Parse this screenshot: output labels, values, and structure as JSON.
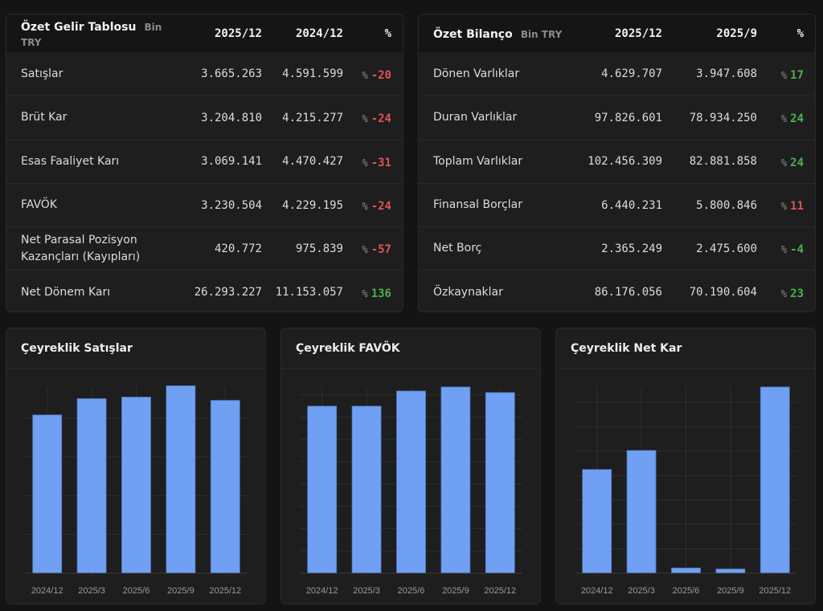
{
  "income_statement": {
    "title": "Özet Gelir Tablosu",
    "unit": "Bin TRY",
    "columns": [
      "2025/12",
      "2024/12",
      "%"
    ],
    "rows": [
      {
        "label": "Satışlar",
        "current": "3.665.263",
        "previous": "4.591.599",
        "pct_symbol": "%",
        "change": "-20",
        "trend": "neg"
      },
      {
        "label": "Brüt Kar",
        "current": "3.204.810",
        "previous": "4.215.277",
        "pct_symbol": "%",
        "change": "-24",
        "trend": "neg"
      },
      {
        "label": "Esas Faaliyet Karı",
        "current": "3.069.141",
        "previous": "4.470.427",
        "pct_symbol": "%",
        "change": "-31",
        "trend": "neg"
      },
      {
        "label": "FAVÖK",
        "current": "3.230.504",
        "previous": "4.229.195",
        "pct_symbol": "%",
        "change": "-24",
        "trend": "neg"
      },
      {
        "label": "Net Parasal Pozisyon Kazançları (Kayıpları)",
        "current": "420.772",
        "previous": "975.839",
        "pct_symbol": "%",
        "change": "-57",
        "trend": "neg"
      },
      {
        "label": "Net Dönem Karı",
        "current": "26.293.227",
        "previous": "11.153.057",
        "pct_symbol": "%",
        "change": "136",
        "trend": "pos"
      }
    ]
  },
  "balance_sheet": {
    "title": "Özet Bilanço",
    "unit": "Bin TRY",
    "columns": [
      "2025/12",
      "2025/9",
      "%"
    ],
    "rows": [
      {
        "label": "Dönen Varlıklar",
        "current": "4.629.707",
        "previous": "3.947.608",
        "pct_symbol": "%",
        "change": "17",
        "trend": "pos"
      },
      {
        "label": "Duran Varlıklar",
        "current": "97.826.601",
        "previous": "78.934.250",
        "pct_symbol": "%",
        "change": "24",
        "trend": "pos"
      },
      {
        "label": "Toplam Varlıklar",
        "current": "102.456.309",
        "previous": "82.881.858",
        "pct_symbol": "%",
        "change": "24",
        "trend": "pos"
      },
      {
        "label": "Finansal Borçlar",
        "current": "6.440.231",
        "previous": "5.800.846",
        "pct_symbol": "%",
        "change": "11",
        "trend": "neg"
      },
      {
        "label": "Net Borç",
        "current": "2.365.249",
        "previous": "2.475.600",
        "pct_symbol": "%",
        "change": "-4",
        "trend": "pos"
      },
      {
        "label": "Özkaynaklar",
        "current": "86.176.056",
        "previous": "70.190.604",
        "pct_symbol": "%",
        "change": "23",
        "trend": "pos"
      }
    ]
  },
  "colors": {
    "background": "#141414",
    "card": "#1e1e1e",
    "bar": "#6fa0f3",
    "negative": "#e05252",
    "positive": "#4caf50",
    "grid": "#2e2e2e"
  },
  "chart_data": [
    {
      "type": "bar",
      "title": "Çeyreklik Satışlar",
      "categories": [
        "2024/12",
        "2025/3",
        "2025/6",
        "2025/9",
        "2025/12"
      ],
      "values": [
        816000,
        900000,
        908000,
        966000,
        891000
      ],
      "ylim": [
        0,
        960000
      ],
      "ytick_step": 200000,
      "grid": true,
      "xlabel": "",
      "ylabel": ""
    },
    {
      "type": "bar",
      "title": "Çeyreklik FAVÖK",
      "categories": [
        "2024/12",
        "2025/3",
        "2025/6",
        "2025/9",
        "2025/12"
      ],
      "values": [
        749000,
        749000,
        817000,
        835000,
        810000
      ],
      "ylim": [
        0,
        835000
      ],
      "ytick_step": 100000,
      "grid": true,
      "xlabel": "",
      "ylabel": ""
    },
    {
      "type": "bar",
      "title": "Çeyreklik Net Kar",
      "categories": [
        "2024/12",
        "2025/3",
        "2025/6",
        "2025/9",
        "2025/12"
      ],
      "values": [
        8500000,
        10060000,
        430000,
        350000,
        15260000
      ],
      "ylim": [
        0,
        15260000
      ],
      "ytick_step": 2000000,
      "grid": true,
      "xlabel": "",
      "ylabel": ""
    }
  ]
}
